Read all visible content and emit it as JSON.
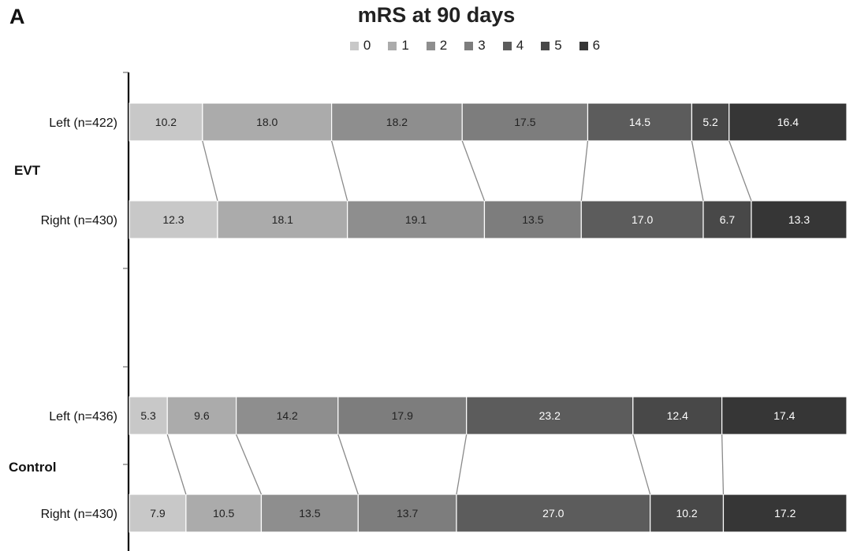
{
  "panel_letter": "A",
  "chart_data": {
    "type": "bar",
    "orientation": "horizontal-stacked-percent",
    "title": "mRS at 90 days",
    "categories": [
      "0",
      "1",
      "2",
      "3",
      "4",
      "5",
      "6"
    ],
    "colors": [
      "#c8c8c8",
      "#ababab",
      "#8e8e8e",
      "#7d7d7d",
      "#5c5c5c",
      "#484848",
      "#363636"
    ],
    "label_colors": [
      "#222222",
      "#222222",
      "#222222",
      "#222222",
      "#ffffff",
      "#ffffff",
      "#ffffff"
    ],
    "groups": [
      {
        "name": "EVT",
        "rows": [
          {
            "label": "Left (n=422)",
            "values": [
              10.2,
              18.0,
              18.2,
              17.5,
              14.5,
              5.2,
              16.4
            ]
          },
          {
            "label": "Right (n=430)",
            "values": [
              12.3,
              18.1,
              19.1,
              13.5,
              17.0,
              6.7,
              13.3
            ]
          }
        ]
      },
      {
        "name": "Control",
        "rows": [
          {
            "label": "Left (n=436)",
            "values": [
              5.3,
              9.6,
              14.2,
              17.9,
              23.2,
              12.4,
              17.4
            ]
          },
          {
            "label": "Right (n=430)",
            "values": [
              7.9,
              10.5,
              13.5,
              13.7,
              27.0,
              10.2,
              17.2
            ]
          }
        ]
      }
    ],
    "xlim": [
      0,
      100
    ],
    "connector_lines": true,
    "legend_position": "top"
  }
}
